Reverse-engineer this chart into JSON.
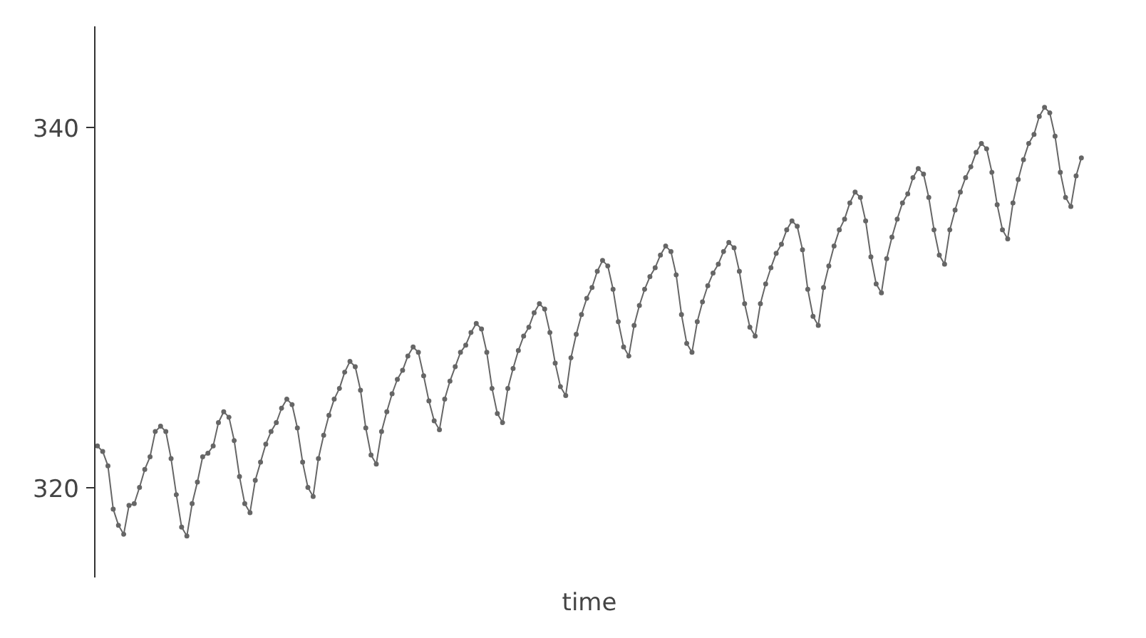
{
  "chart_data": {
    "type": "line",
    "xlabel": "time",
    "categories": [
      null,
      null,
      null,
      null,
      null,
      null,
      null,
      null,
      null,
      null,
      null,
      null,
      null,
      null,
      null,
      null,
      null,
      null,
      null,
      null,
      null,
      null,
      null,
      null,
      null,
      null,
      null,
      null,
      null,
      null,
      null,
      null,
      null,
      null,
      null,
      null,
      null,
      null,
      null,
      null,
      null,
      null,
      null,
      null,
      null,
      null,
      null,
      null,
      null,
      null,
      null,
      null,
      null,
      null,
      null,
      null,
      null,
      null,
      null,
      null,
      null,
      null,
      null,
      null,
      null,
      null,
      null,
      null,
      null,
      null,
      null,
      null,
      null,
      null,
      null,
      null,
      null,
      null,
      null,
      null,
      null,
      null,
      null,
      null,
      null,
      null,
      null,
      null,
      null,
      null,
      null,
      null,
      null,
      null,
      null,
      null,
      null,
      null,
      null,
      null,
      null,
      null,
      null,
      null,
      null,
      null,
      null,
      null,
      null,
      null,
      null,
      null,
      null,
      null,
      null,
      null,
      null,
      null,
      null,
      null,
      null,
      null,
      null,
      null,
      null,
      null,
      null,
      null,
      null,
      null,
      null,
      null,
      null,
      null,
      null,
      null,
      null,
      null,
      null,
      null,
      null,
      null,
      null,
      null,
      null,
      null,
      null,
      null,
      null,
      null,
      null,
      null,
      null,
      null,
      null,
      null,
      null,
      null,
      null,
      null,
      null,
      null,
      null,
      null,
      null,
      null,
      null,
      null,
      null,
      null,
      null,
      null,
      null,
      null,
      null,
      null,
      null,
      null,
      null,
      null,
      null,
      null,
      null,
      null,
      null,
      null,
      null,
      null
    ],
    "series": [
      {
        "color": "#666666",
        "values": [
          322.3,
          322.0,
          321.2,
          318.8,
          317.9,
          317.4,
          319.0,
          319.1,
          320.0,
          321.0,
          321.7,
          323.1,
          323.4,
          323.1,
          321.6,
          319.6,
          317.8,
          317.3,
          319.1,
          320.3,
          321.7,
          321.9,
          322.3,
          323.6,
          324.2,
          323.9,
          322.6,
          320.6,
          319.1,
          318.6,
          320.4,
          321.4,
          322.4,
          323.1,
          323.6,
          324.4,
          324.9,
          324.6,
          323.3,
          321.4,
          320.0,
          319.5,
          321.6,
          322.9,
          324.0,
          324.9,
          325.5,
          326.4,
          327.0,
          326.7,
          325.4,
          323.3,
          321.8,
          321.3,
          323.1,
          324.2,
          325.2,
          326.0,
          326.5,
          327.3,
          327.8,
          327.5,
          326.2,
          324.8,
          323.7,
          323.2,
          324.9,
          325.9,
          326.7,
          327.5,
          327.9,
          328.6,
          329.1,
          328.8,
          327.5,
          325.5,
          324.1,
          323.6,
          325.5,
          326.6,
          327.6,
          328.4,
          328.9,
          329.7,
          330.2,
          329.9,
          328.6,
          326.9,
          325.6,
          325.1,
          327.2,
          328.5,
          329.6,
          330.5,
          331.1,
          332.0,
          332.6,
          332.3,
          331.0,
          329.2,
          327.8,
          327.3,
          329.0,
          330.1,
          331.0,
          331.7,
          332.2,
          332.9,
          333.4,
          333.1,
          331.8,
          329.6,
          328.0,
          327.5,
          329.2,
          330.3,
          331.2,
          331.9,
          332.4,
          333.1,
          333.6,
          333.3,
          332.0,
          330.2,
          328.9,
          328.4,
          330.2,
          331.3,
          332.2,
          333.0,
          333.5,
          334.3,
          334.8,
          334.5,
          333.2,
          331.0,
          329.5,
          329.0,
          331.1,
          332.3,
          333.4,
          334.3,
          334.9,
          335.8,
          336.4,
          336.1,
          334.8,
          332.8,
          331.3,
          330.8,
          332.7,
          333.9,
          334.9,
          335.8,
          336.3,
          337.2,
          337.7,
          337.4,
          336.1,
          334.3,
          332.9,
          332.4,
          334.3,
          335.4,
          336.4,
          337.2,
          337.8,
          338.6,
          339.1,
          338.8,
          337.5,
          335.7,
          334.3,
          333.8,
          335.8,
          337.1,
          338.2,
          339.1,
          339.6,
          340.6,
          341.1,
          340.8,
          339.5,
          337.5,
          336.1,
          335.6,
          337.3,
          338.3
        ]
      }
    ],
    "ylim": [
      315.0,
      345.6
    ],
    "yticks": [
      320,
      340
    ],
    "tick_labels": "y",
    "grid": false,
    "marker": "circle",
    "line_style": "solid"
  }
}
